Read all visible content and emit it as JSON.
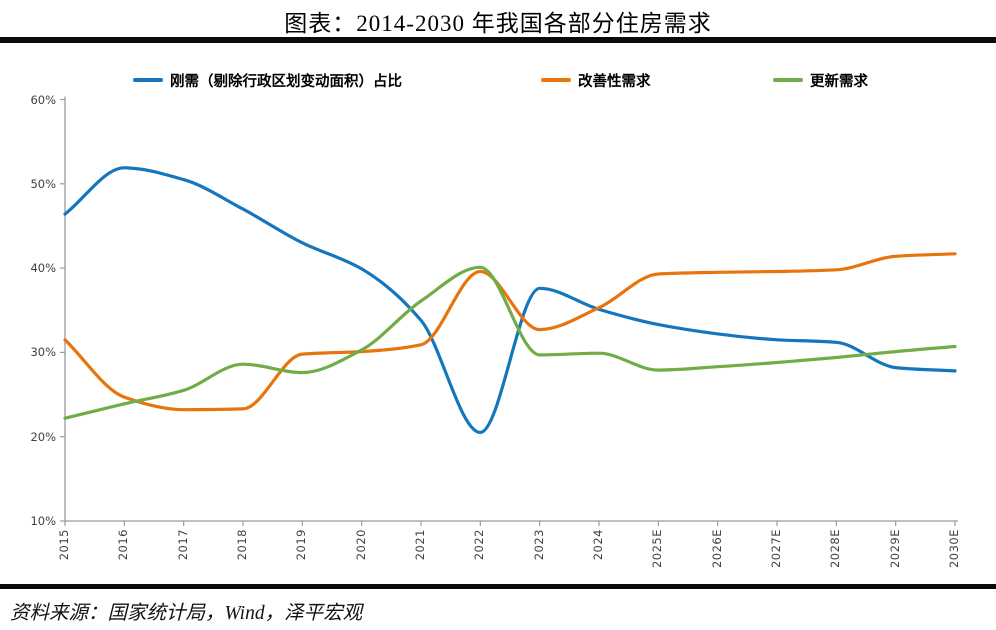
{
  "title": "图表：2014-2030 年我国各部分住房需求",
  "source": "资料来源：国家统计局，Wind，泽平宏观",
  "chart_data": {
    "type": "line",
    "title": "图表：2014-2030 年我国各部分住房需求",
    "categories": [
      "2015",
      "2016",
      "2017",
      "2018",
      "2019",
      "2020",
      "2021",
      "2022",
      "2023",
      "2024",
      "2025E",
      "2026E",
      "2027E",
      "2028E",
      "2029E",
      "2030E"
    ],
    "series": [
      {
        "name": "刚需（剔除行政区划变动面积）占比",
        "color": "#1476BE",
        "values": [
          46.4,
          51.9,
          50.5,
          47.0,
          43.0,
          39.9,
          33.8,
          20.5,
          37.6,
          35.1,
          33.3,
          32.2,
          31.5,
          31.2,
          28.2,
          27.8
        ]
      },
      {
        "name": "改善性需求",
        "color": "#E8740E",
        "values": [
          31.5,
          24.7,
          23.2,
          23.3,
          29.8,
          30.1,
          30.9,
          39.6,
          32.7,
          35.3,
          39.3,
          39.5,
          39.6,
          39.8,
          41.4,
          41.7
        ]
      },
      {
        "name": "更新需求",
        "color": "#70AD47",
        "values": [
          22.2,
          23.9,
          25.5,
          28.6,
          27.6,
          30.3,
          36.1,
          40.1,
          29.7,
          29.9,
          27.9,
          28.3,
          28.8,
          29.4,
          30.1,
          30.7
        ]
      }
    ],
    "xlabel": "",
    "ylabel": "",
    "yaxis": {
      "ticks": [
        "60%",
        "50%",
        "40%",
        "30%",
        "20%",
        "10%"
      ],
      "min": 10,
      "max": 60,
      "unit": "%"
    },
    "grid": false,
    "legend_position": "top",
    "axis_color": "#9b9b9b"
  }
}
